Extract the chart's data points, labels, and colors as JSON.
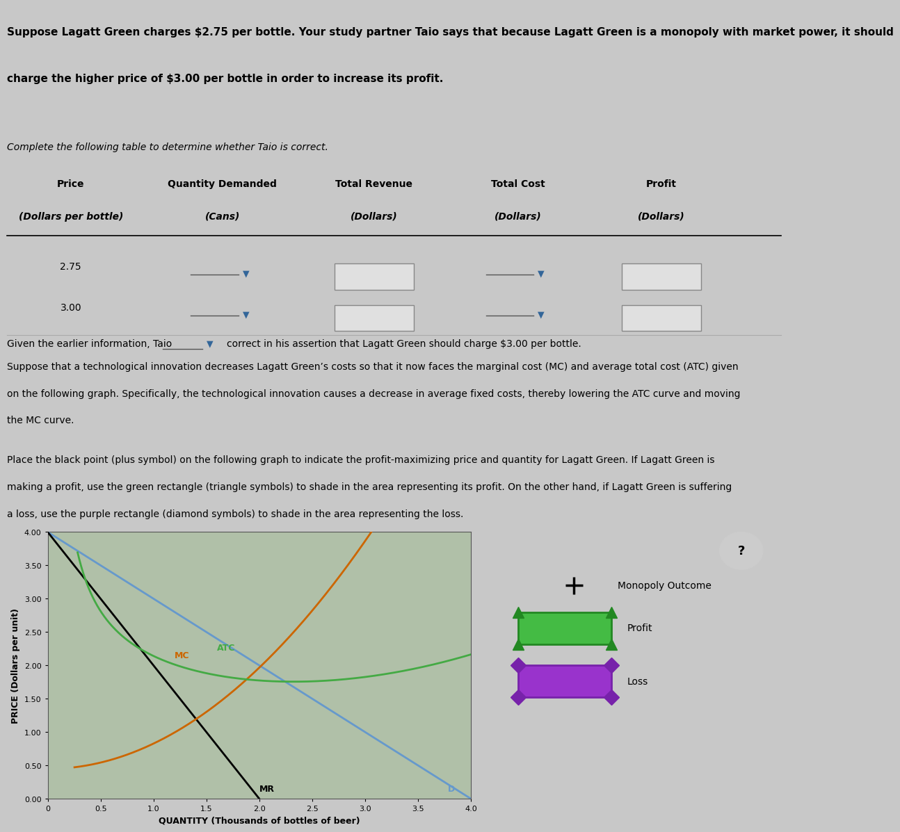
{
  "bg_color": "#c8c8c8",
  "title_text1": "Suppose Lagatt Green charges $2.75 per bottle. Your study partner Taio says that because Lagatt Green is a monopoly with market power, it should",
  "title_text2": "charge the higher price of $3.00 per bottle in order to increase its profit.",
  "table_header": "Complete the following table to determine whether Taio is correct.",
  "col_headers": [
    "Price",
    "Quantity Demanded",
    "Total Revenue",
    "Total Cost",
    "Profit"
  ],
  "col_subheaders": [
    "(Dollars per bottle)",
    "(Cans)",
    "(Dollars)",
    "(Dollars)",
    "(Dollars)"
  ],
  "row1_price": "2.75",
  "row2_price": "3.00",
  "given_text": "Given the earlier information, Taio",
  "given_text2": "correct in his assertion that Lagatt Green should charge $3.00 per bottle.",
  "para1": "Suppose that a technological innovation decreases Lagatt Green’s costs so that it now faces the marginal cost (MC) and average total cost (ATC) given",
  "para2": "on the following graph. Specifically, the technological innovation causes a decrease in average fixed costs, thereby lowering the ATC curve and moving",
  "para3": "the MC curve.",
  "para4": "Place the black point (plus symbol) on the following graph to indicate the profit-maximizing price and quantity for Lagatt Green. If Lagatt Green is",
  "para5": "making a profit, use the green rectangle (triangle symbols) to shade in the area representing its profit. On the other hand, if Lagatt Green is suffering",
  "para6": "a loss, use the purple rectangle (diamond symbols) to shade in the area representing the loss.",
  "ylabel": "PRICE (Dollars per unit)",
  "xlabel": "QUANTITY (Thousands of bottles of beer)",
  "yticks": [
    0,
    0.5,
    1.0,
    1.5,
    2.0,
    2.5,
    3.0,
    3.5,
    4.0
  ],
  "xticks": [
    0,
    0.5,
    1.0,
    1.5,
    2.0,
    2.5,
    3.0,
    3.5,
    4.0
  ],
  "xlim": [
    0,
    4.0
  ],
  "ylim": [
    0,
    4.0
  ],
  "D_color": "#6699cc",
  "MR_color": "#000000",
  "MC_color": "#cc6600",
  "ATC_color": "#44aa44",
  "legend_plus_color": "#000000",
  "legend_profit_color": "#44bb44",
  "legend_loss_color": "#9933cc"
}
